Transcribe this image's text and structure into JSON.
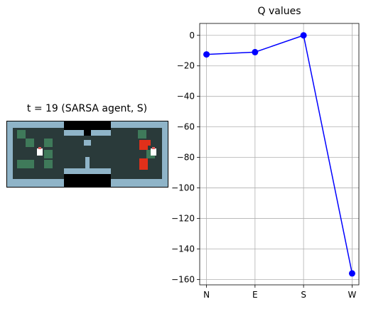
{
  "left_panel": {
    "title": "t = 19 (SARSA agent, S)"
  },
  "chart_data": {
    "type": "line",
    "title": "Q values",
    "xlabel": "",
    "ylabel": "",
    "categories": [
      "N",
      "E",
      "S",
      "W"
    ],
    "series": [
      {
        "values": [
          -12.5,
          -11.0,
          0.0,
          -156.0
        ],
        "color": "#0000ff",
        "marker": "circle"
      }
    ],
    "ylim": [
      -163.5,
      7.8
    ],
    "yticks": [
      0,
      -20,
      -40,
      -60,
      -80,
      -100,
      -120,
      -140,
      -160
    ],
    "grid": true
  }
}
